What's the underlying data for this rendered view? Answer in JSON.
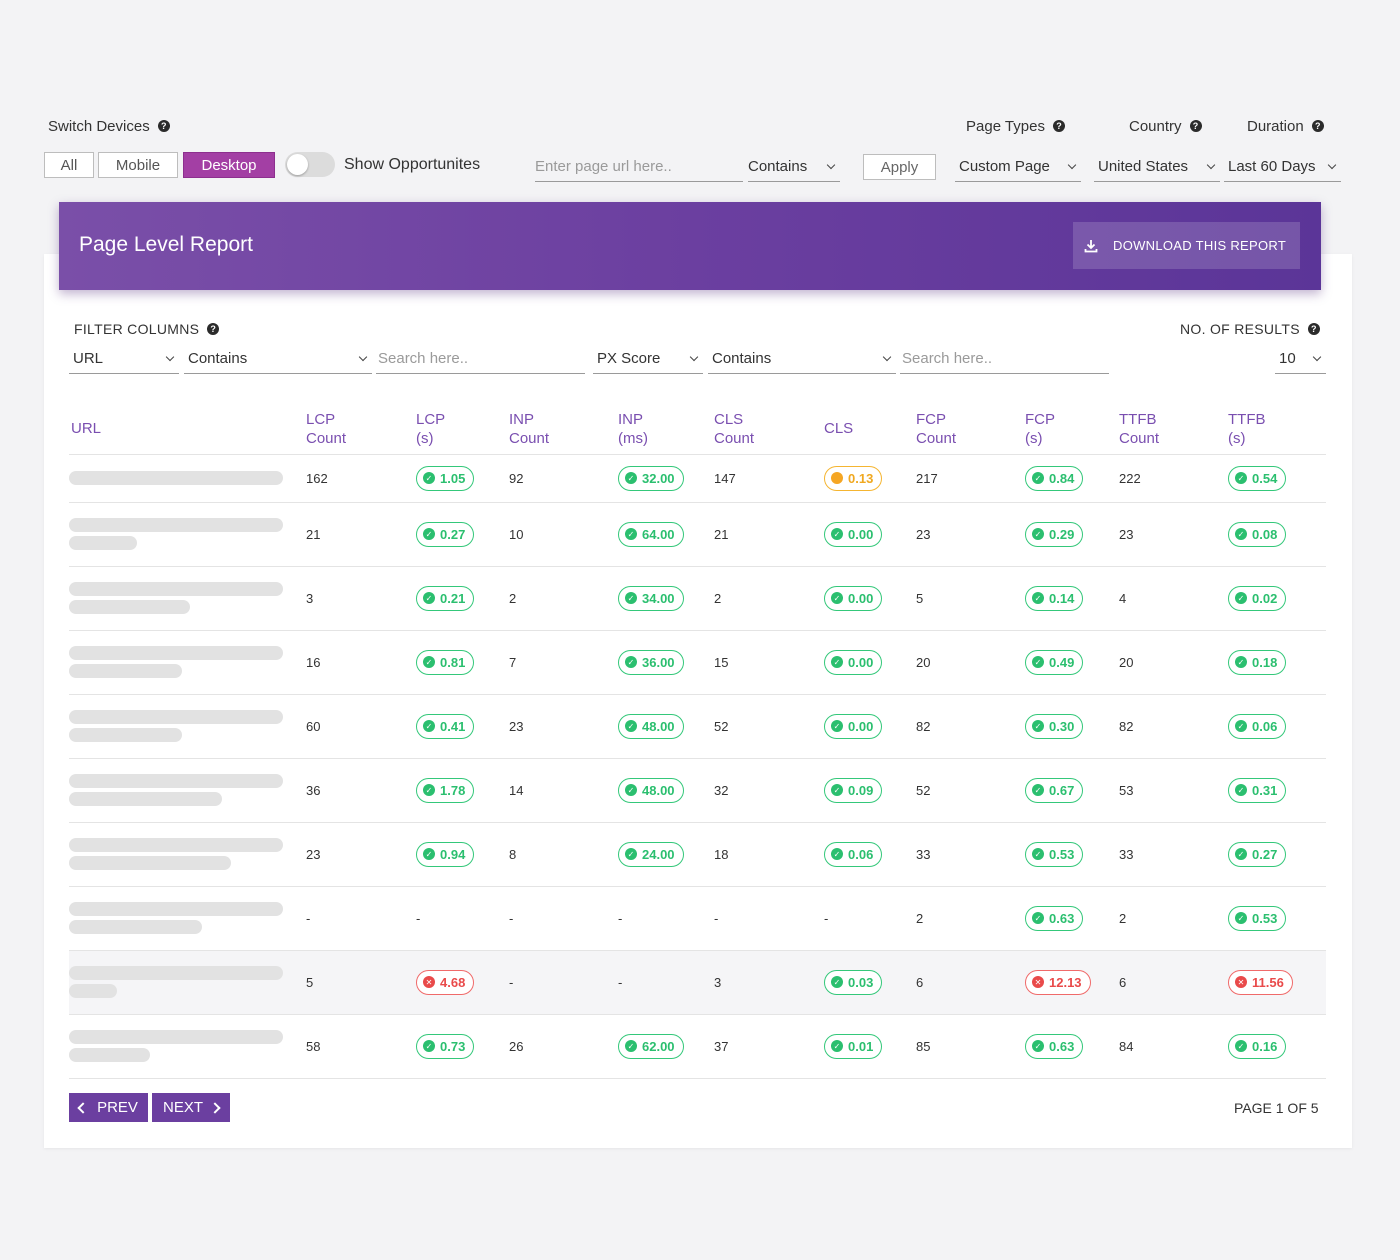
{
  "controls": {
    "switch_devices_label": "Switch Devices",
    "devices": [
      "All",
      "Mobile",
      "Desktop"
    ],
    "active_device": "Desktop",
    "show_opportunities_label": "Show Opportunites",
    "show_opportunities_on": false,
    "url_placeholder": "Enter page url here..",
    "url_match": "Contains",
    "apply_label": "Apply",
    "page_types_label": "Page Types",
    "page_type_value": "Custom Page",
    "country_label": "Country",
    "country_value": "United States",
    "duration_label": "Duration",
    "duration_value": "Last 60 Days",
    "help_glyph": "?"
  },
  "report": {
    "title": "Page Level Report",
    "download_label": "DOWNLOAD THIS REPORT",
    "download_icon": "download-icon"
  },
  "filters": {
    "label": "FILTER COLUMNS",
    "col1": "URL",
    "op1": "Contains",
    "search1_placeholder": "Search here..",
    "col2": "PX Score",
    "op2": "Contains",
    "search2_placeholder": "Search here..",
    "results_label": "NO. OF RESULTS",
    "results_value": "10"
  },
  "table": {
    "headers": [
      [
        "URL",
        ""
      ],
      [
        "LCP",
        "Count"
      ],
      [
        "LCP",
        "(s)"
      ],
      [
        "INP",
        "Count"
      ],
      [
        "INP",
        "(ms)"
      ],
      [
        "CLS",
        "Count"
      ],
      [
        "CLS",
        ""
      ],
      [
        "FCP",
        "Count"
      ],
      [
        "FCP",
        "(s)"
      ],
      [
        "TTFB",
        "Count"
      ],
      [
        "TTFB",
        "(s)"
      ]
    ],
    "rows": [
      {
        "url_lines": 1,
        "lcp_count": "162",
        "lcp": {
          "v": "1.05",
          "s": "good"
        },
        "inp_count": "92",
        "inp": {
          "v": "32.00",
          "s": "good"
        },
        "cls_count": "147",
        "cls": {
          "v": "0.13",
          "s": "warn"
        },
        "fcp_count": "217",
        "fcp": {
          "v": "0.84",
          "s": "good"
        },
        "ttfb_count": "222",
        "ttfb": {
          "v": "0.54",
          "s": "good"
        }
      },
      {
        "url_lines": 2,
        "lcp_count": "21",
        "lcp": {
          "v": "0.27",
          "s": "good"
        },
        "inp_count": "10",
        "inp": {
          "v": "64.00",
          "s": "good"
        },
        "cls_count": "21",
        "cls": {
          "v": "0.00",
          "s": "good"
        },
        "fcp_count": "23",
        "fcp": {
          "v": "0.29",
          "s": "good"
        },
        "ttfb_count": "23",
        "ttfb": {
          "v": "0.08",
          "s": "good"
        }
      },
      {
        "url_lines": 2,
        "lcp_count": "3",
        "lcp": {
          "v": "0.21",
          "s": "good"
        },
        "inp_count": "2",
        "inp": {
          "v": "34.00",
          "s": "good"
        },
        "cls_count": "2",
        "cls": {
          "v": "0.00",
          "s": "good"
        },
        "fcp_count": "5",
        "fcp": {
          "v": "0.14",
          "s": "good"
        },
        "ttfb_count": "4",
        "ttfb": {
          "v": "0.02",
          "s": "good"
        }
      },
      {
        "url_lines": 2,
        "lcp_count": "16",
        "lcp": {
          "v": "0.81",
          "s": "good"
        },
        "inp_count": "7",
        "inp": {
          "v": "36.00",
          "s": "good"
        },
        "cls_count": "15",
        "cls": {
          "v": "0.00",
          "s": "good"
        },
        "fcp_count": "20",
        "fcp": {
          "v": "0.49",
          "s": "good"
        },
        "ttfb_count": "20",
        "ttfb": {
          "v": "0.18",
          "s": "good"
        }
      },
      {
        "url_lines": 2,
        "lcp_count": "60",
        "lcp": {
          "v": "0.41",
          "s": "good"
        },
        "inp_count": "23",
        "inp": {
          "v": "48.00",
          "s": "good"
        },
        "cls_count": "52",
        "cls": {
          "v": "0.00",
          "s": "good"
        },
        "fcp_count": "82",
        "fcp": {
          "v": "0.30",
          "s": "good"
        },
        "ttfb_count": "82",
        "ttfb": {
          "v": "0.06",
          "s": "good"
        }
      },
      {
        "url_lines": 2,
        "lcp_count": "36",
        "lcp": {
          "v": "1.78",
          "s": "good"
        },
        "inp_count": "14",
        "inp": {
          "v": "48.00",
          "s": "good"
        },
        "cls_count": "32",
        "cls": {
          "v": "0.09",
          "s": "good"
        },
        "fcp_count": "52",
        "fcp": {
          "v": "0.67",
          "s": "good"
        },
        "ttfb_count": "53",
        "ttfb": {
          "v": "0.31",
          "s": "good"
        }
      },
      {
        "url_lines": 2,
        "lcp_count": "23",
        "lcp": {
          "v": "0.94",
          "s": "good"
        },
        "inp_count": "8",
        "inp": {
          "v": "24.00",
          "s": "good"
        },
        "cls_count": "18",
        "cls": {
          "v": "0.06",
          "s": "good"
        },
        "fcp_count": "33",
        "fcp": {
          "v": "0.53",
          "s": "good"
        },
        "ttfb_count": "33",
        "ttfb": {
          "v": "0.27",
          "s": "good"
        }
      },
      {
        "url_lines": 2,
        "lcp_count": "-",
        "lcp": {
          "v": "-",
          "s": "none"
        },
        "inp_count": "-",
        "inp": {
          "v": "-",
          "s": "none"
        },
        "cls_count": "-",
        "cls": {
          "v": "-",
          "s": "none"
        },
        "fcp_count": "2",
        "fcp": {
          "v": "0.63",
          "s": "good"
        },
        "ttfb_count": "2",
        "ttfb": {
          "v": "0.53",
          "s": "good"
        }
      },
      {
        "url_lines": 2,
        "highlight": true,
        "lcp_count": "5",
        "lcp": {
          "v": "4.68",
          "s": "poor"
        },
        "inp_count": "-",
        "inp": {
          "v": "-",
          "s": "none"
        },
        "cls_count": "3",
        "cls": {
          "v": "0.03",
          "s": "good"
        },
        "fcp_count": "6",
        "fcp": {
          "v": "12.13",
          "s": "poor"
        },
        "ttfb_count": "6",
        "ttfb": {
          "v": "11.56",
          "s": "poor"
        }
      },
      {
        "url_lines": 2,
        "lcp_count": "58",
        "lcp": {
          "v": "0.73",
          "s": "good"
        },
        "inp_count": "26",
        "inp": {
          "v": "62.00",
          "s": "good"
        },
        "cls_count": "37",
        "cls": {
          "v": "0.01",
          "s": "good"
        },
        "fcp_count": "85",
        "fcp": {
          "v": "0.63",
          "s": "good"
        },
        "ttfb_count": "84",
        "ttfb": {
          "v": "0.16",
          "s": "good"
        }
      }
    ]
  },
  "pagination": {
    "prev_label": "PREV",
    "next_label": "NEXT",
    "page_info": "PAGE 1 OF 5"
  },
  "colors": {
    "accent": "#6b3fa0",
    "desktop_active": "#a33fa4",
    "good": "#2bbf6f",
    "warn": "#f5a623",
    "poor": "#e94a4a"
  }
}
